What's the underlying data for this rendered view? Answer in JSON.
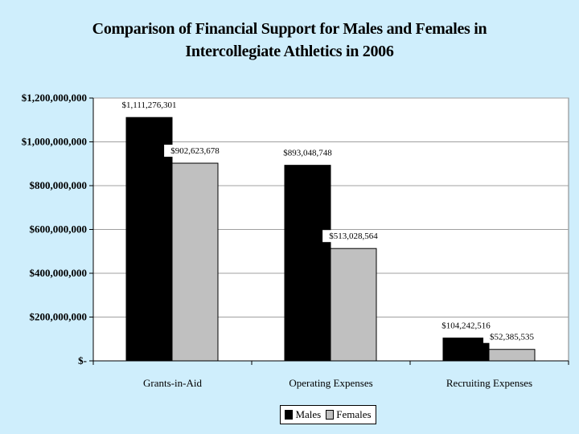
{
  "chart_data": {
    "type": "bar",
    "title_lines": [
      "Comparison of Financial Support for Males and Females in",
      "Intercollegiate Athletics in 2006"
    ],
    "categories": [
      "Grants-in-Aid",
      "Operating Expenses",
      "Recruiting Expenses"
    ],
    "series": [
      {
        "name": "Males",
        "color": "#000000",
        "values": [
          1111276301,
          893048748,
          104242516
        ],
        "labels": [
          "$1,111,276,301",
          "$893,048,748",
          "$104,242,516"
        ]
      },
      {
        "name": "Females",
        "color": "#c0c0c0",
        "values": [
          902623678,
          513028564,
          52385535
        ],
        "labels": [
          "$902,623,678",
          "$513,028,564",
          "$52,385,535"
        ]
      }
    ],
    "ylim": [
      0,
      1200000000
    ],
    "yticks": [
      0,
      200000000,
      400000000,
      600000000,
      800000000,
      1000000000,
      1200000000
    ],
    "ytick_labels": [
      "$-",
      "$200,000,000",
      "$400,000,000",
      "$600,000,000",
      "$800,000,000",
      "$1,000,000,000",
      "$1,200,000,000"
    ],
    "grid": true,
    "legend": "bottom"
  }
}
